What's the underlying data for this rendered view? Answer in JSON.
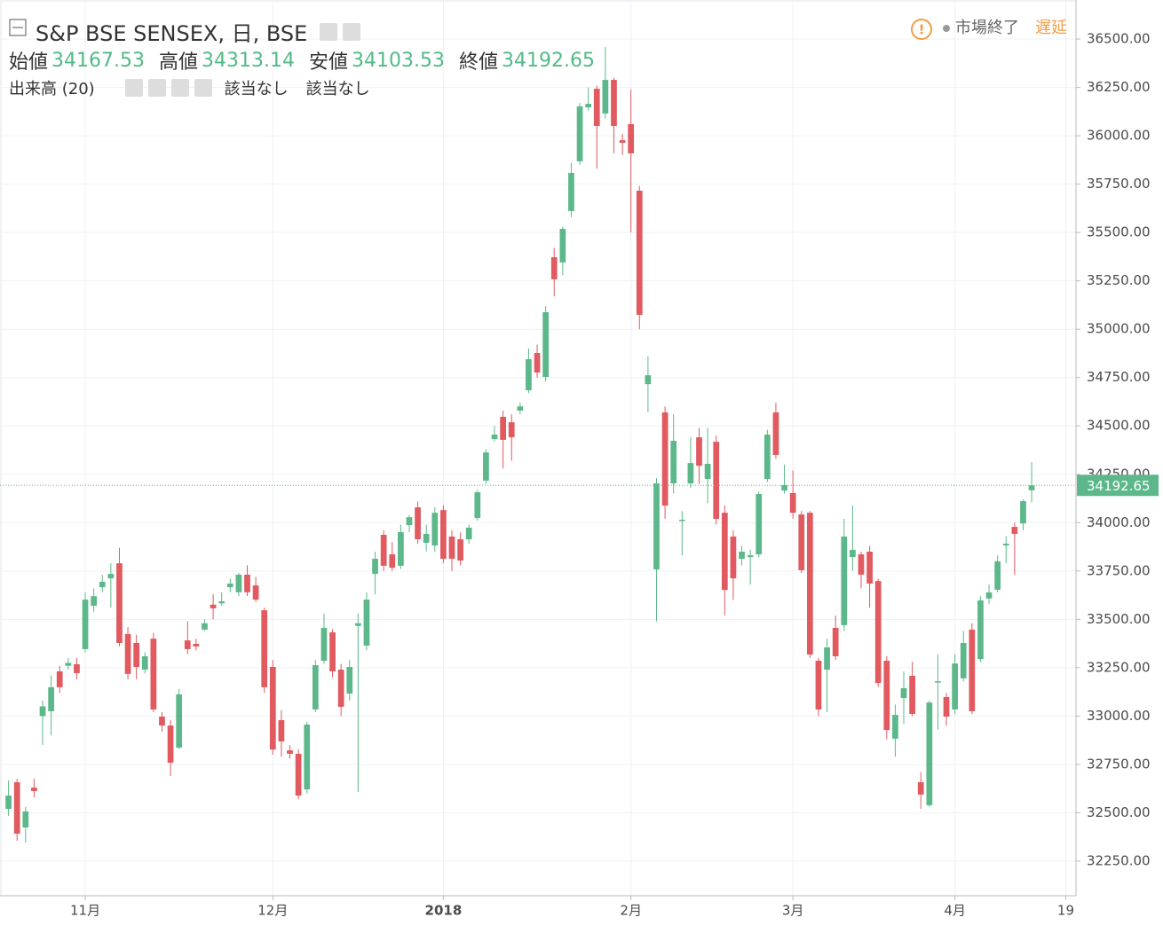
{
  "texts": {
    "open": "始値",
    "high": "高値",
    "low": "安値",
    "close": "終値",
    "volume": "出来高 (20)",
    "na": [
      "該当なし",
      "該当なし"
    ],
    "market_closed": "市場終了",
    "delayed": "遅延"
  },
  "chart_data": {
    "type": "candlestick",
    "title": "S&P BSE SENSEX, 日, BSE",
    "up_color": "#5cb88a",
    "down_color": "#e05a5f",
    "grid": true,
    "open": [
      32520,
      32658,
      32424,
      32630,
      33000,
      33025,
      33231,
      33260,
      33268,
      33346,
      33570,
      33666,
      33712,
      33790,
      33424,
      33378,
      33240,
      33400,
      32997,
      32951,
      32837,
      33391,
      33373,
      33447,
      33576,
      33583,
      33666,
      33640,
      33731,
      33675,
      33547,
      33254,
      32979,
      32823,
      32805,
      32621,
      33034,
      33286,
      33433,
      33240,
      33116,
      33466,
      33364,
      33735,
      33937,
      33836,
      33777,
      33987,
      34079,
      33896,
      33882,
      34065,
      33928,
      33914,
      33914,
      34024,
      34217,
      34432,
      34547,
      34519,
      34579,
      34684,
      34877,
      34753,
      35372,
      35345,
      35611,
      35868,
      36147,
      36243,
      36115,
      36289,
      35977,
      36060,
      35716,
      34716,
      33758,
      34570,
      34203,
      34010,
      34203,
      34441,
      34226,
      34418,
      34051,
      33928,
      33813,
      33822,
      33836,
      34226,
      34570,
      34166,
      34153,
      34042,
      34051,
      33286,
      33240,
      33456,
      33470,
      33822,
      33836,
      33850,
      33698,
      33286,
      32883,
      33093,
      33208,
      32658,
      32539,
      33176,
      33098,
      33034,
      33195,
      33447,
      33295,
      33608,
      33653,
      33882,
      33978,
      33996,
      34167.53
    ],
    "high": [
      32667,
      32676,
      32530,
      32676,
      33080,
      33210,
      33260,
      33300,
      33300,
      33640,
      33660,
      33730,
      33790,
      33870,
      33460,
      33420,
      33330,
      33430,
      33020,
      32980,
      33140,
      33490,
      33400,
      33500,
      33630,
      33640,
      33710,
      33740,
      33780,
      33720,
      33560,
      33290,
      33030,
      32850,
      32830,
      32970,
      33290,
      33530,
      33450,
      33270,
      33290,
      33530,
      33640,
      33850,
      33960,
      33900,
      33990,
      34040,
      34110,
      33990,
      34080,
      34090,
      33960,
      33950,
      33990,
      34170,
      34380,
      34500,
      34580,
      34560,
      34620,
      34900,
      34920,
      35120,
      35420,
      35530,
      35860,
      36170,
      36250,
      36260,
      36460,
      36300,
      36010,
      36240,
      35740,
      34860,
      34230,
      34600,
      34560,
      34060,
      34440,
      34490,
      34490,
      34450,
      34090,
      33960,
      33880,
      33860,
      34160,
      34480,
      34620,
      34300,
      34270,
      34060,
      34060,
      33300,
      33400,
      33520,
      34020,
      34090,
      33850,
      33880,
      33710,
      33310,
      33060,
      33230,
      33280,
      32710,
      33080,
      33320,
      33120,
      33320,
      33440,
      33480,
      33620,
      33680,
      33830,
      33930,
      34000,
      34120,
      34313.14
    ],
    "low": [
      32484,
      32355,
      32346,
      32580,
      32850,
      32900,
      33120,
      33240,
      33190,
      33330,
      33540,
      33640,
      33560,
      33360,
      33190,
      33190,
      33220,
      33020,
      32920,
      32690,
      32830,
      33320,
      33340,
      33440,
      33500,
      33570,
      33640,
      33620,
      33620,
      33590,
      33120,
      32800,
      32790,
      32780,
      32570,
      32600,
      33020,
      33270,
      33200,
      33000,
      33080,
      32607,
      33340,
      33630,
      33750,
      33750,
      33760,
      33950,
      33890,
      33850,
      33850,
      33790,
      33750,
      33780,
      33890,
      34010,
      34200,
      34420,
      34280,
      34320,
      34560,
      34670,
      34750,
      34730,
      35170,
      35280,
      35580,
      35850,
      36130,
      35830,
      36090,
      35910,
      35900,
      35500,
      35000,
      34570,
      33490,
      34020,
      34150,
      33830,
      34180,
      34200,
      34100,
      33990,
      33520,
      33600,
      33780,
      33680,
      33820,
      34210,
      34330,
      34150,
      34020,
      33740,
      33300,
      33000,
      33020,
      33290,
      33440,
      33750,
      33660,
      33560,
      33150,
      32880,
      32790,
      32960,
      33000,
      32520,
      32530,
      32930,
      32950,
      33010,
      33180,
      33010,
      33280,
      33580,
      33640,
      33790,
      33730,
      33960,
      34103.53
    ],
    "close": [
      32589,
      32392,
      32507,
      32612,
      33050,
      33149,
      33149,
      33275,
      33222,
      33602,
      33620,
      33694,
      33735,
      33378,
      33218,
      33254,
      33309,
      33034,
      32951,
      32759,
      33112,
      33346,
      33360,
      33480,
      33557,
      33593,
      33685,
      33731,
      33640,
      33602,
      33149,
      32827,
      32869,
      32805,
      32589,
      32956,
      33263,
      33456,
      33231,
      33048,
      33254,
      33480,
      33602,
      33813,
      33777,
      33767,
      33951,
      34028,
      33914,
      33942,
      34051,
      33813,
      33813,
      33804,
      33974,
      34157,
      34363,
      34455,
      34428,
      34441,
      34601,
      34845,
      34776,
      35088,
      35258,
      35519,
      35808,
      36152,
      36165,
      36051,
      36289,
      36051,
      35964,
      35909,
      35074,
      34762,
      34203,
      34088,
      34423,
      34015,
      34308,
      34294,
      34304,
      34019,
      33652,
      33712,
      33850,
      33831,
      34148,
      34455,
      34350,
      34194,
      34051,
      33754,
      33318,
      33034,
      33355,
      33309,
      33928,
      33859,
      33731,
      33685,
      33171,
      32928,
      33006,
      33144,
      33011,
      32594,
      33070,
      33180,
      32997,
      33272,
      33378,
      33025,
      33598,
      33639,
      33800,
      33891,
      33942,
      34111,
      34192.65
    ],
    "xlim": [
      -1,
      125.2
    ],
    "xticks": [
      {
        "value": 9,
        "label": "11月"
      },
      {
        "value": 31,
        "label": "12月"
      },
      {
        "value": 51,
        "label": "2018"
      },
      {
        "value": 73,
        "label": "2月"
      },
      {
        "value": 92,
        "label": "3月"
      },
      {
        "value": 111,
        "label": "4月"
      },
      {
        "value": 124,
        "label": "19"
      }
    ],
    "ylim": [
      32071,
      36702
    ],
    "yticks": [
      {
        "value": 32250,
        "label": "32250.00"
      },
      {
        "value": 32500,
        "label": "32500.00"
      },
      {
        "value": 32750,
        "label": "32750.00"
      },
      {
        "value": 33000,
        "label": "33000.00"
      },
      {
        "value": 33250,
        "label": "33250.00"
      },
      {
        "value": 33500,
        "label": "33500.00"
      },
      {
        "value": 33750,
        "label": "33750.00"
      },
      {
        "value": 34000,
        "label": "34000.00"
      },
      {
        "value": 34250,
        "label": "34250.00"
      },
      {
        "value": 34500,
        "label": "34500.00"
      },
      {
        "value": 34750,
        "label": "34750.00"
      },
      {
        "value": 35000,
        "label": "35000.00"
      },
      {
        "value": 35250,
        "label": "35250.00"
      },
      {
        "value": 35500,
        "label": "35500.00"
      },
      {
        "value": 35750,
        "label": "35750.00"
      },
      {
        "value": 36000,
        "label": "36000.00"
      },
      {
        "value": 36250,
        "label": "36250.00"
      },
      {
        "value": 36500,
        "label": "36500.00"
      }
    ]
  }
}
